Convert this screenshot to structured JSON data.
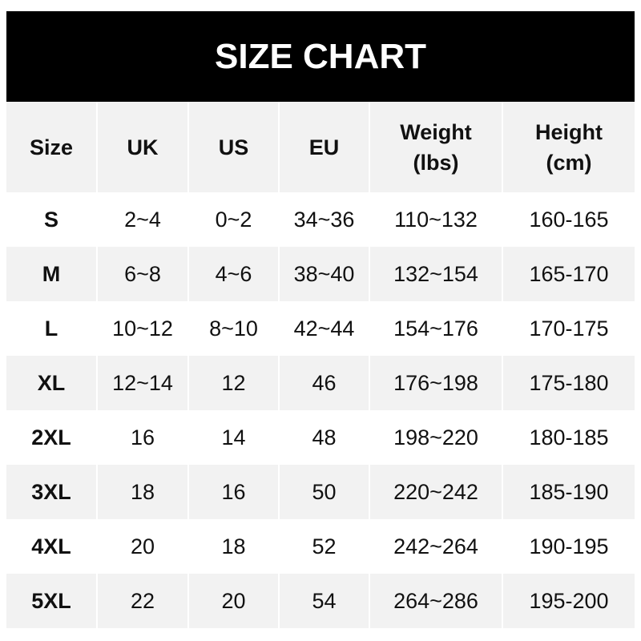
{
  "title": "SIZE CHART",
  "headers": [
    "Size",
    "UK",
    "US",
    "EU",
    "Weight\n(lbs)",
    "Height\n(cm)"
  ],
  "rows": [
    [
      "S",
      "2~4",
      "0~2",
      "34~36",
      "110~132",
      "160-165"
    ],
    [
      "M",
      "6~8",
      "4~6",
      "38~40",
      "132~154",
      "165-170"
    ],
    [
      "L",
      "10~12",
      "8~10",
      "42~44",
      "154~176",
      "170-175"
    ],
    [
      "XL",
      "12~14",
      "12",
      "46",
      "176~198",
      "175-180"
    ],
    [
      "2XL",
      "16",
      "14",
      "48",
      "198~220",
      "180-185"
    ],
    [
      "3XL",
      "18",
      "16",
      "50",
      "220~242",
      "185-190"
    ],
    [
      "4XL",
      "20",
      "18",
      "52",
      "242~264",
      "190-195"
    ],
    [
      "5XL",
      "22",
      "20",
      "54",
      "264~286",
      "195-200"
    ]
  ],
  "colors": {
    "header_bg": "#000000",
    "stripe": "#f2f2f2",
    "text": "#111111"
  }
}
